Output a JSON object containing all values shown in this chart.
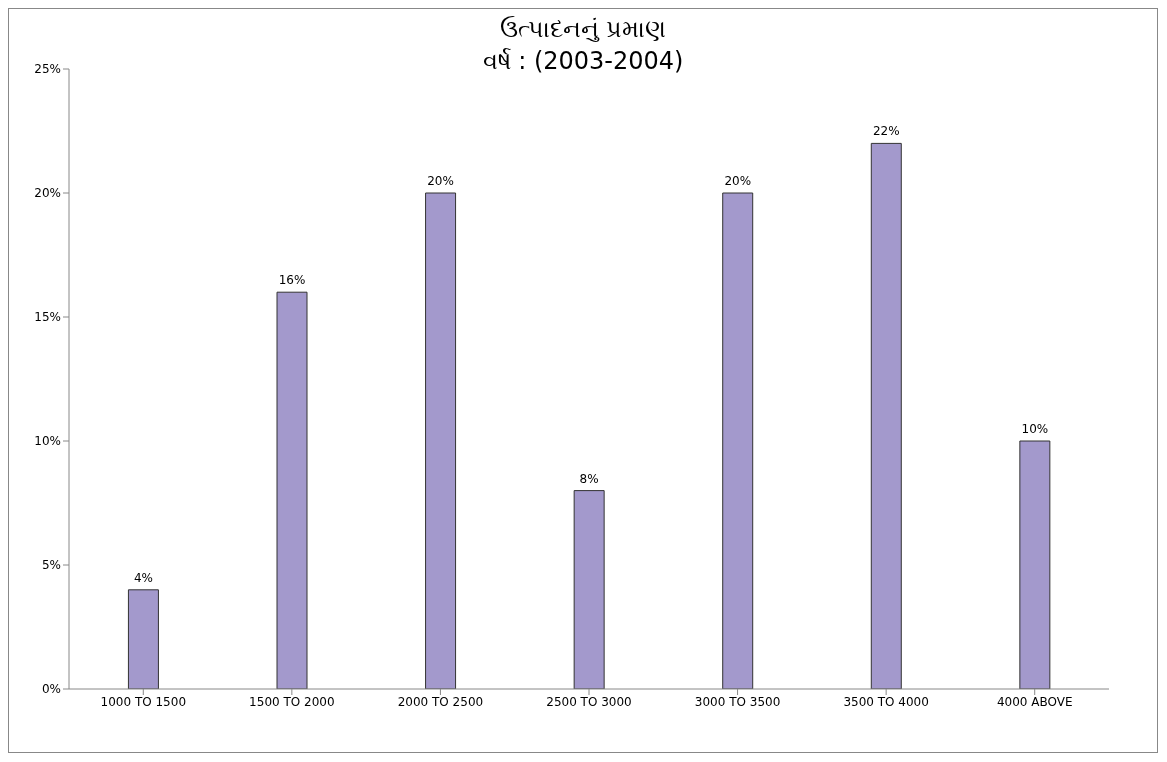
{
  "chart_data": {
    "type": "bar",
    "title": "ઉત્પાદનનું પ્રમાણ\nવર્ષ : (2003-2004)",
    "categories": [
      "1000 TO 1500",
      "1500 TO 2000",
      "2000 TO 2500",
      "2500 TO 3000",
      "3000 TO 3500",
      "3500 TO 4000",
      "4000 ABOVE"
    ],
    "values": [
      4,
      16,
      20,
      8,
      20,
      22,
      10
    ],
    "value_labels": [
      "4%",
      "16%",
      "20%",
      "8%",
      "20%",
      "22%",
      "10%"
    ],
    "color": "#a399cc",
    "ylim": [
      0,
      25
    ],
    "yticks": [
      {
        "value": 0,
        "label": "0%"
      },
      {
        "value": 5,
        "label": "5%"
      },
      {
        "value": 10,
        "label": "10%"
      },
      {
        "value": 15,
        "label": "15%"
      },
      {
        "value": 20,
        "label": "20%"
      },
      {
        "value": 25,
        "label": "25%"
      }
    ],
    "grid": false,
    "legend": false
  }
}
